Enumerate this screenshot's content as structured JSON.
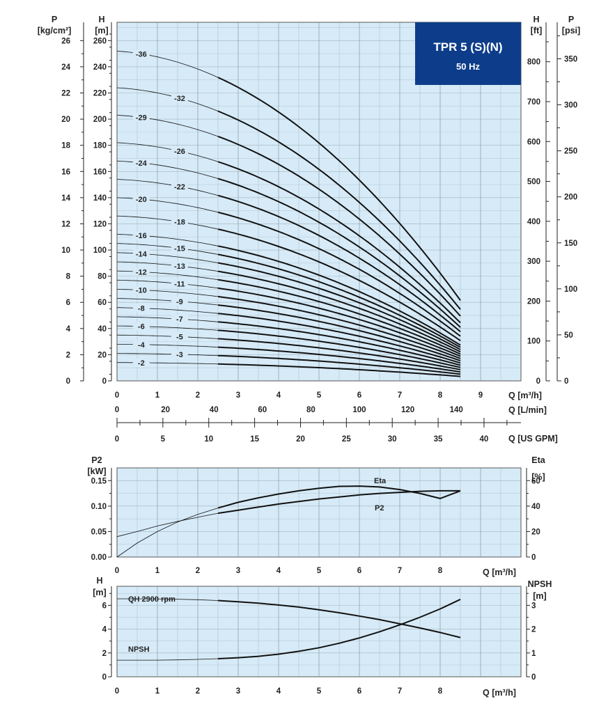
{
  "title_box": {
    "title": "TPR 5 (S)(N)",
    "subtitle": "50 Hz",
    "color": "#0d3d8a"
  },
  "plot_background": "#d6eaf7",
  "chart_data": [
    {
      "type": "line",
      "name_text": "",
      "x_label": "Q [m³/h]",
      "x_ticks": [
        "0",
        "1",
        "2",
        "3",
        "4",
        "5",
        "6",
        "7",
        "8",
        "9"
      ],
      "xlim": [
        0,
        10
      ],
      "secondary_x_axes": [
        {
          "label": "Q [L/min]",
          "ticks": [
            "0",
            "20",
            "40",
            "60",
            "80",
            "100",
            "120",
            "140"
          ]
        },
        {
          "label": "Q [US GPM]",
          "ticks": [
            "0",
            "5",
            "10",
            "15",
            "20",
            "25",
            "30",
            "35",
            "40"
          ]
        }
      ],
      "left_axes": [
        {
          "label_top": "P",
          "label_unit": "[kg/cm²]",
          "ticks": [
            "0",
            "2",
            "4",
            "6",
            "8",
            "10",
            "12",
            "14",
            "16",
            "18",
            "20",
            "22",
            "24",
            "26"
          ]
        },
        {
          "label_top": "H",
          "label_unit": "[m]",
          "ticks": [
            "0",
            "20",
            "40",
            "60",
            "80",
            "100",
            "120",
            "140",
            "160",
            "180",
            "200",
            "220",
            "240",
            "260"
          ]
        }
      ],
      "right_axes": [
        {
          "label_top": "H",
          "label_unit": "[ft]",
          "ticks": [
            "0",
            "100",
            "200",
            "300",
            "400",
            "500",
            "600",
            "700",
            "800"
          ]
        },
        {
          "label_top": "P",
          "label_unit": "[psi]",
          "ticks": [
            "0",
            "50",
            "100",
            "150",
            "200",
            "250",
            "300",
            "350"
          ]
        }
      ],
      "ylim": [
        0,
        274
      ],
      "grid": true,
      "thin_until_q": 2.5,
      "q_max": 8.5,
      "series": [
        {
          "name": "-2",
          "values_at": {
            "0": 14.0,
            "8.5": 3.4
          }
        },
        {
          "name": "-3",
          "values_at": {
            "0": 21.0,
            "8.5": 5.1
          }
        },
        {
          "name": "-4",
          "values_at": {
            "0": 28.0,
            "8.5": 6.8
          }
        },
        {
          "name": "-5",
          "values_at": {
            "0": 35.0,
            "8.5": 8.5
          }
        },
        {
          "name": "-6",
          "values_at": {
            "0": 42.0,
            "8.5": 10.2
          }
        },
        {
          "name": "-7",
          "values_at": {
            "0": 49.0,
            "8.5": 11.9
          }
        },
        {
          "name": "-8",
          "values_at": {
            "0": 56.0,
            "8.5": 13.6
          }
        },
        {
          "name": "-9",
          "values_at": {
            "0": 63.0,
            "8.5": 15.3
          }
        },
        {
          "name": "-10",
          "values_at": {
            "0": 70.0,
            "8.5": 17.0
          }
        },
        {
          "name": "-11",
          "values_at": {
            "0": 77.0,
            "8.5": 18.7
          }
        },
        {
          "name": "-12",
          "values_at": {
            "0": 84.0,
            "8.5": 20.4
          }
        },
        {
          "name": "-13",
          "values_at": {
            "0": 91.0,
            "8.5": 22.1
          }
        },
        {
          "name": "-14",
          "values_at": {
            "0": 98.0,
            "8.5": 23.8
          }
        },
        {
          "name": "-15",
          "values_at": {
            "0": 105.0,
            "8.5": 25.5
          }
        },
        {
          "name": "-16",
          "values_at": {
            "0": 112.0,
            "8.5": 27.2
          }
        },
        {
          "name": "-18",
          "values_at": {
            "0": 126.0,
            "8.5": 30.6
          }
        },
        {
          "name": "-20",
          "values_at": {
            "0": 140.0,
            "8.5": 34.0
          }
        },
        {
          "name": "-22",
          "values_at": {
            "0": 154.0,
            "8.5": 37.4
          }
        },
        {
          "name": "-24",
          "values_at": {
            "0": 168.0,
            "8.5": 40.8
          }
        },
        {
          "name": "-26",
          "values_at": {
            "0": 182.0,
            "8.5": 44.2
          }
        },
        {
          "name": "-29",
          "values_at": {
            "0": 203.0,
            "8.5": 49.3
          }
        },
        {
          "name": "-32",
          "values_at": {
            "0": 224.0,
            "8.5": 54.4
          }
        },
        {
          "name": "-36",
          "values_at": {
            "0": 252.0,
            "8.5": 61.2
          }
        }
      ]
    },
    {
      "type": "line",
      "x_label": "Q [m³/h]",
      "x_ticks": [
        "0",
        "1",
        "2",
        "3",
        "4",
        "5",
        "6",
        "7",
        "8"
      ],
      "xlim": [
        0,
        10
      ],
      "left_axis": {
        "label_top": "P2",
        "label_unit": "[kW]",
        "ticks": [
          "0.00",
          "0.05",
          "0.10",
          "0.15"
        ],
        "ylim": [
          0,
          0.175
        ]
      },
      "right_axis": {
        "label_top": "Eta",
        "label_unit": "[%]",
        "ticks": [
          "0",
          "20",
          "40",
          "60"
        ],
        "ylim": [
          0,
          70
        ]
      },
      "grid": true,
      "series": [
        {
          "name": "Eta",
          "axis": "right",
          "x": [
            0,
            0.5,
            1,
            1.5,
            2,
            2.5,
            3,
            3.5,
            4,
            4.5,
            5,
            5.5,
            6,
            6.5,
            7,
            7.5,
            8,
            8.5
          ],
          "y": [
            0,
            11,
            20,
            27.5,
            33.5,
            38.5,
            43,
            46.5,
            49.5,
            52,
            54,
            55.5,
            55.7,
            55,
            53,
            50,
            46,
            52
          ]
        },
        {
          "name": "P2",
          "axis": "left",
          "x": [
            0,
            0.5,
            1,
            1.5,
            2,
            2.5,
            3,
            3.5,
            4,
            4.5,
            5,
            5.5,
            6,
            6.5,
            7,
            7.5,
            8,
            8.5
          ],
          "y": [
            0.04,
            0.05,
            0.061,
            0.07,
            0.078,
            0.086,
            0.092,
            0.098,
            0.104,
            0.109,
            0.114,
            0.118,
            0.122,
            0.125,
            0.127,
            0.129,
            0.13,
            0.13
          ]
        }
      ]
    },
    {
      "type": "line",
      "x_label": "Q [m³/h]",
      "x_ticks": [
        "0",
        "1",
        "2",
        "3",
        "4",
        "5",
        "6",
        "7",
        "8"
      ],
      "xlim": [
        0,
        10
      ],
      "left_axis": {
        "label_top": "H",
        "label_unit": "[m]",
        "ticks": [
          "0",
          "2",
          "4",
          "6"
        ],
        "ylim": [
          0,
          7.6
        ]
      },
      "right_axis": {
        "label_top": "NPSH",
        "label_unit": "[m]",
        "ticks": [
          "0",
          "1",
          "2",
          "3"
        ],
        "ylim": [
          0,
          3.8
        ]
      },
      "grid": true,
      "series": [
        {
          "name": "QH 2900 rpm",
          "axis": "left",
          "x": [
            0,
            0.5,
            1,
            1.5,
            2,
            2.5,
            3,
            3.5,
            4,
            4.5,
            5,
            5.5,
            6,
            6.5,
            7,
            7.5,
            8,
            8.5
          ],
          "y": [
            6.55,
            6.55,
            6.54,
            6.51,
            6.47,
            6.4,
            6.3,
            6.18,
            6.03,
            5.85,
            5.63,
            5.38,
            5.1,
            4.8,
            4.45,
            4.1,
            3.72,
            3.3
          ]
        },
        {
          "name": "NPSH",
          "axis": "right",
          "x": [
            0,
            0.5,
            1,
            1.5,
            2,
            2.5,
            3,
            3.5,
            4,
            4.5,
            5,
            5.5,
            6,
            6.5,
            7,
            7.5,
            8,
            8.5
          ],
          "y": [
            0.7,
            0.7,
            0.7,
            0.71,
            0.73,
            0.76,
            0.8,
            0.86,
            0.95,
            1.07,
            1.22,
            1.41,
            1.63,
            1.89,
            2.18,
            2.5,
            2.85,
            3.25
          ]
        }
      ]
    }
  ]
}
